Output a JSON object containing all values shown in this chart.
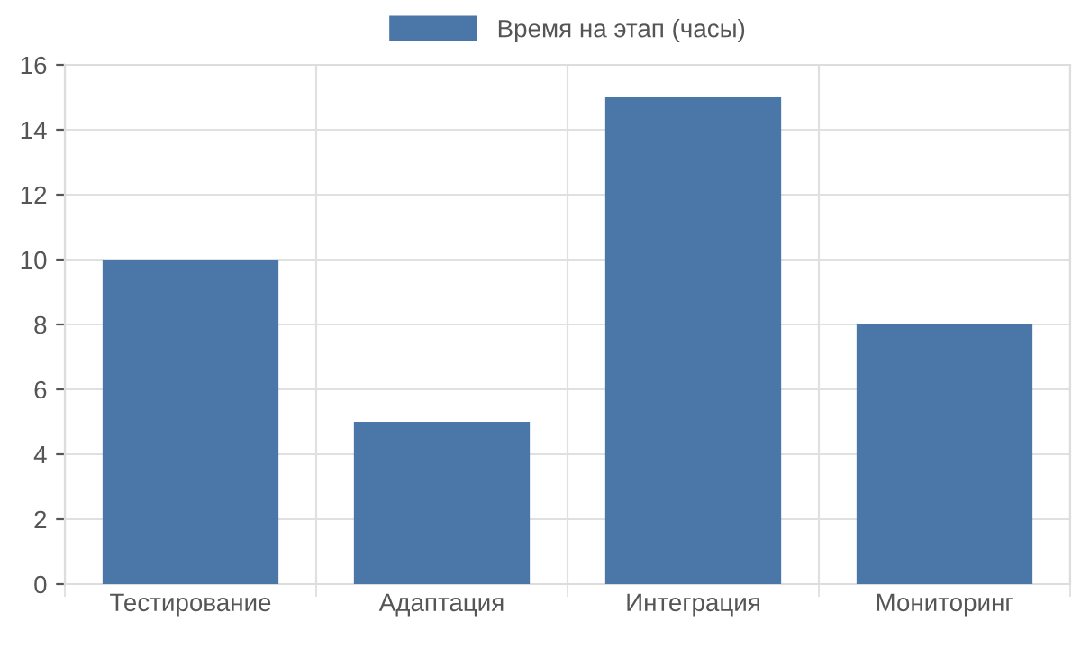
{
  "chart_data": {
    "type": "bar",
    "categories": [
      "Тестирование",
      "Адаптация",
      "Интеграция",
      "Мониторинг"
    ],
    "series": [
      {
        "name": "Время на этап (часы)",
        "color": "#4a76a8",
        "values": [
          10,
          5,
          15,
          8
        ]
      }
    ],
    "ylim": [
      0,
      16
    ],
    "yticks": [
      0,
      2,
      4,
      6,
      8,
      10,
      12,
      14,
      16
    ],
    "grid": true,
    "legend": "top"
  }
}
